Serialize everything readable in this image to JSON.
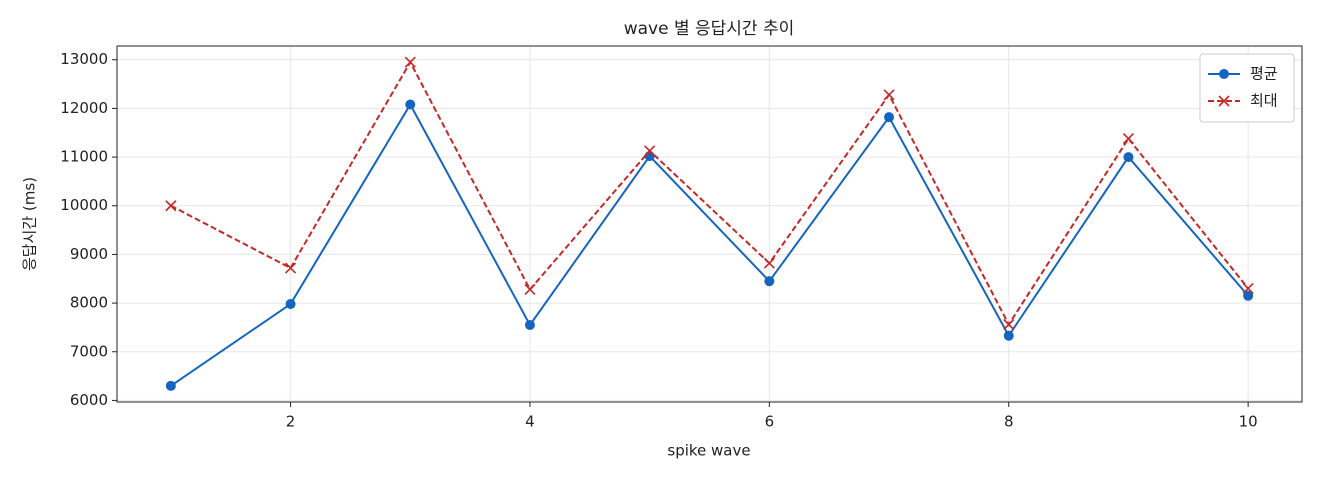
{
  "chart_data": {
    "type": "line",
    "title": "wave 별 응답시간 추이",
    "x_label": "spike wave",
    "y_label": "응답시간 (ms)",
    "x": [
      1,
      2,
      3,
      4,
      5,
      6,
      7,
      8,
      9,
      10
    ],
    "series": [
      {
        "name": "평균",
        "color": "#1565c0",
        "marker": "o",
        "dash": false,
        "values": [
          6300,
          7980,
          12080,
          7550,
          11020,
          8450,
          11820,
          7330,
          11000,
          8150
        ]
      },
      {
        "name": "최대",
        "color": "#c62828",
        "marker": "x",
        "dash": true,
        "values": [
          10000,
          8720,
          12950,
          8280,
          11130,
          8820,
          12280,
          7560,
          11380,
          8300
        ]
      }
    ],
    "xlim": [
      0.55,
      10.45
    ],
    "xticks": [
      2,
      4,
      6,
      8,
      10
    ],
    "ylim": [
      5967.5,
      13282.5
    ],
    "yticks": [
      6000,
      7000,
      8000,
      9000,
      10000,
      11000,
      12000,
      13000
    ],
    "grid": true,
    "legend": "upper right"
  }
}
